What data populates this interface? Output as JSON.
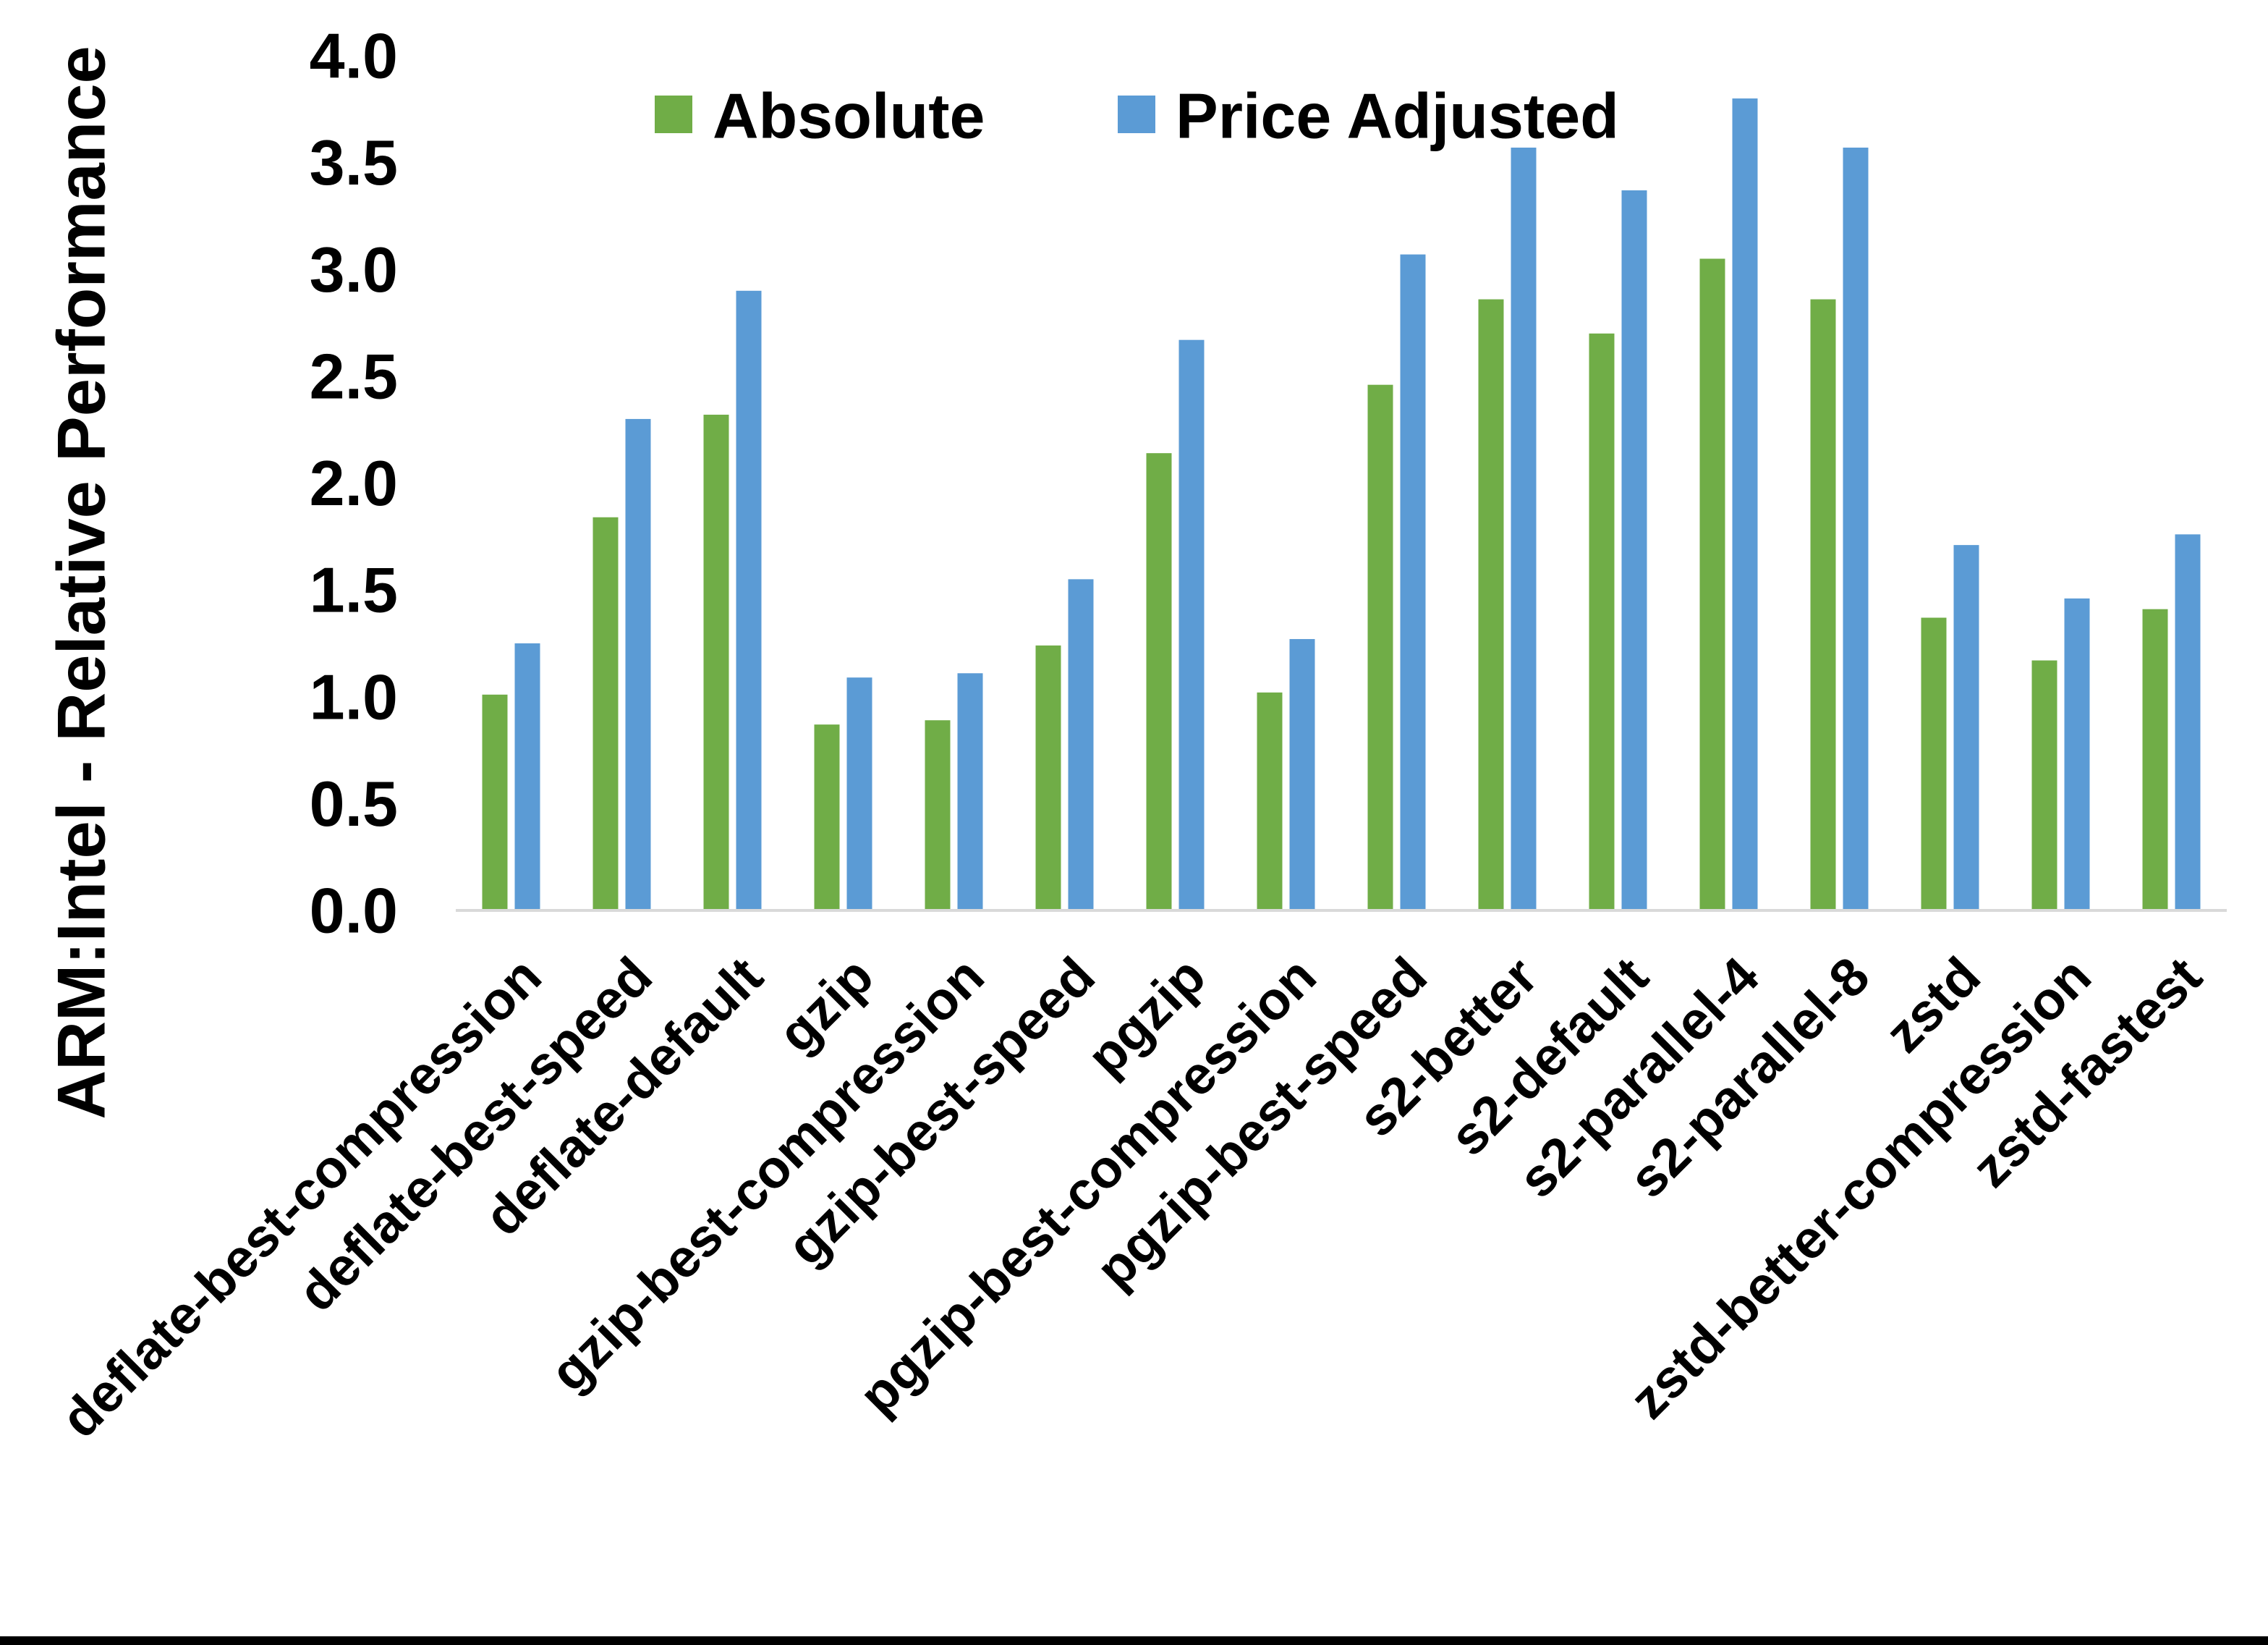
{
  "chart_data": {
    "type": "bar",
    "title": "",
    "ylabel": "ARM:Intel - Relative Performance",
    "xlabel": "",
    "ylim": [
      0.0,
      4.0
    ],
    "ytick_step": 0.5,
    "ytick_labels": [
      "0.0",
      "0.5",
      "1.0",
      "1.5",
      "2.0",
      "2.5",
      "3.0",
      "3.5",
      "4.0"
    ],
    "grid": false,
    "legend_position": "top-center",
    "categories": [
      "deflate-best-compression",
      "deflate-best-speed",
      "deflate-default",
      "gzip",
      "gzip-best-compression",
      "gzip-best-speed",
      "pgzip",
      "pgzip-best-compression",
      "pgzip-best-speed",
      "s2-better",
      "s2-default",
      "s2-parallel-4",
      "s2-parallel-8",
      "zstd",
      "zstd-better-compression",
      "zstd-fastest"
    ],
    "series": [
      {
        "name": "Absolute",
        "color": "#70AD47",
        "values": [
          1.01,
          1.84,
          2.32,
          0.87,
          0.89,
          1.24,
          2.14,
          1.02,
          2.46,
          2.86,
          2.7,
          3.05,
          2.86,
          1.37,
          1.17,
          1.41
        ]
      },
      {
        "name": "Price Adjusted",
        "color": "#5B9BD5",
        "values": [
          1.25,
          2.3,
          2.9,
          1.09,
          1.11,
          1.55,
          2.67,
          1.27,
          3.07,
          3.57,
          3.37,
          3.8,
          3.57,
          1.71,
          1.46,
          1.76
        ]
      }
    ],
    "axis_line_color": "#D9D9D9",
    "x_label_rotation_deg": -45
  }
}
